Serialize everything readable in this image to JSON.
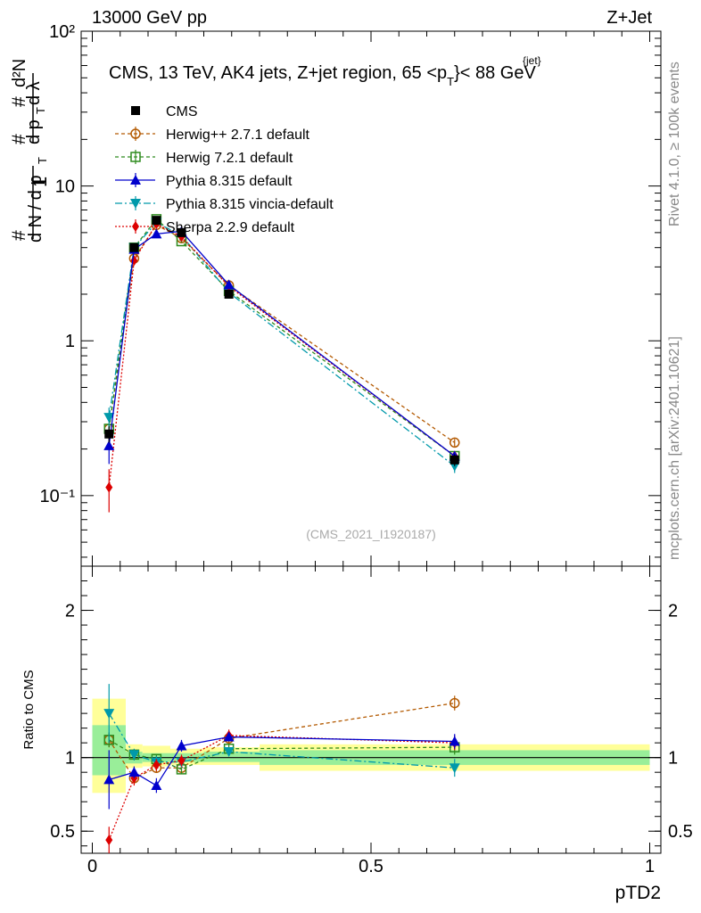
{
  "header": {
    "left": "13000 GeV pp",
    "right": "Z+Jet",
    "title_main": "CMS, 13 TeV, AK4 jets, Z+jet region, 65 <p",
    "title_sub": "T",
    "title_sup": "{jet}",
    "title_tail": "}< 88 GeV",
    "side_rivet": "Rivet 4.1.0, ≥ 100k events",
    "side_mcplots": "mcplots.cern.ch [arXiv:2401.10621]",
    "watermark": "(CMS_2021_I1920187)"
  },
  "main_axis": {
    "ylabel": "# 1/dN/dp_T # d²N/dp_T dλ",
    "ytick_labels": [
      "10⁻¹",
      "1",
      "10",
      "10²"
    ],
    "yticks": [
      0.1,
      1,
      10,
      100
    ],
    "ylim": [
      0.035,
      100
    ],
    "scale": "log"
  },
  "ratio_axis": {
    "ylabel": "Ratio to CMS",
    "ytick_labels": [
      "0.5",
      "1",
      "2"
    ],
    "yticks": [
      0.5,
      1,
      2
    ],
    "ylim": [
      0.35,
      2.3
    ]
  },
  "x_axis": {
    "xlabel": "pTD2",
    "xtick_labels": [
      "0",
      "0.5",
      "1"
    ],
    "xticks": [
      0,
      0.5,
      1
    ],
    "xlim": [
      -0.02,
      1.02
    ]
  },
  "chart_data": {
    "type": "line",
    "x": [
      0.03,
      0.075,
      0.115,
      0.16,
      0.245,
      0.65
    ],
    "bands": [
      {
        "x0": 0.0,
        "x1": 0.06,
        "y_lo": 0.76,
        "y_hi": 1.4,
        "inner_lo": 0.88,
        "inner_hi": 1.22
      },
      {
        "x0": 0.06,
        "x1": 0.09,
        "y_lo": 0.93,
        "y_hi": 1.09,
        "inner_lo": 0.96,
        "inner_hi": 1.04
      },
      {
        "x0": 0.09,
        "x1": 0.14,
        "y_lo": 0.94,
        "y_hi": 1.08,
        "inner_lo": 0.97,
        "inner_hi": 1.03
      },
      {
        "x0": 0.14,
        "x1": 0.2,
        "y_lo": 0.95,
        "y_hi": 1.06,
        "inner_lo": 0.97,
        "inner_hi": 1.03
      },
      {
        "x0": 0.2,
        "x1": 0.3,
        "y_lo": 0.95,
        "y_hi": 1.07,
        "inner_lo": 0.97,
        "inner_hi": 1.04
      },
      {
        "x0": 0.3,
        "x1": 1.0,
        "y_lo": 0.91,
        "y_hi": 1.09,
        "inner_lo": 0.95,
        "inner_hi": 1.05
      }
    ],
    "series": [
      {
        "name": "CMS",
        "color": "#000000",
        "marker": "square-filled",
        "dash": "",
        "is_data": true,
        "values": [
          0.25,
          4.0,
          6.0,
          5.0,
          2.0,
          0.17
        ],
        "errors": [
          0.03,
          0.2,
          0.3,
          0.25,
          0.1,
          0.015
        ],
        "ratio": [
          1,
          1,
          1,
          1,
          1,
          1
        ],
        "ratio_err": [
          0,
          0,
          0,
          0,
          0,
          0
        ]
      },
      {
        "name": "Herwig++ 2.7.1 default",
        "color": "#b35900",
        "marker": "circle-open",
        "dash": "4,3",
        "values": [
          0.27,
          3.4,
          5.6,
          4.6,
          2.28,
          0.22
        ],
        "errors": [
          0.02,
          0.1,
          0.15,
          0.12,
          0.06,
          0.012
        ],
        "ratio": [
          1.12,
          0.86,
          0.93,
          0.93,
          1.13,
          1.37
        ],
        "ratio_err": [
          0.05,
          0.03,
          0.03,
          0.03,
          0.03,
          0.05
        ]
      },
      {
        "name": "Herwig 7.2.1 default",
        "color": "#2e8b1e",
        "marker": "square-open",
        "dash": "4,3",
        "values": [
          0.27,
          4.0,
          6.1,
          4.4,
          2.1,
          0.18
        ],
        "errors": [
          0.02,
          0.1,
          0.15,
          0.12,
          0.06,
          0.012
        ],
        "ratio": [
          1.12,
          1.02,
          0.99,
          0.92,
          1.06,
          1.07
        ],
        "ratio_err": [
          0.05,
          0.03,
          0.03,
          0.03,
          0.03,
          0.05
        ]
      },
      {
        "name": "Pythia 8.315 default",
        "color": "#0000cc",
        "marker": "triangle-up",
        "dash": "",
        "values": [
          0.21,
          3.9,
          4.9,
          5.1,
          2.3,
          0.18
        ],
        "errors": [
          0.05,
          0.1,
          0.15,
          0.15,
          0.06,
          0.012
        ],
        "ratio": [
          0.85,
          0.9,
          0.81,
          1.08,
          1.14,
          1.11
        ],
        "ratio_err": [
          0.2,
          0.04,
          0.05,
          0.04,
          0.03,
          0.05
        ]
      },
      {
        "name": "Pythia 8.315 vincia-default",
        "color": "#0099aa",
        "marker": "triangle-down",
        "dash": "8,3,2,3",
        "values": [
          0.32,
          4.0,
          5.8,
          4.8,
          2.05,
          0.155
        ],
        "errors": [
          0.05,
          0.1,
          0.15,
          0.12,
          0.06,
          0.015
        ],
        "ratio": [
          1.3,
          1.02,
          0.97,
          0.97,
          1.04,
          0.93
        ],
        "ratio_err": [
          0.2,
          0.04,
          0.04,
          0.04,
          0.03,
          0.06
        ]
      },
      {
        "name": "Sherpa 2.2.9 default",
        "color": "#dd0000",
        "marker": "diamond",
        "dash": "2,2",
        "values": [
          0.113,
          3.3,
          5.7,
          4.7,
          2.25,
          0.18
        ],
        "errors": [
          0.035,
          0.1,
          0.15,
          0.12,
          0.06,
          0.012
        ],
        "ratio": [
          0.44,
          0.86,
          0.95,
          0.98,
          1.15,
          1.1
        ],
        "ratio_err": [
          0.09,
          0.05,
          0.04,
          0.04,
          0.04,
          0.05
        ]
      }
    ]
  }
}
